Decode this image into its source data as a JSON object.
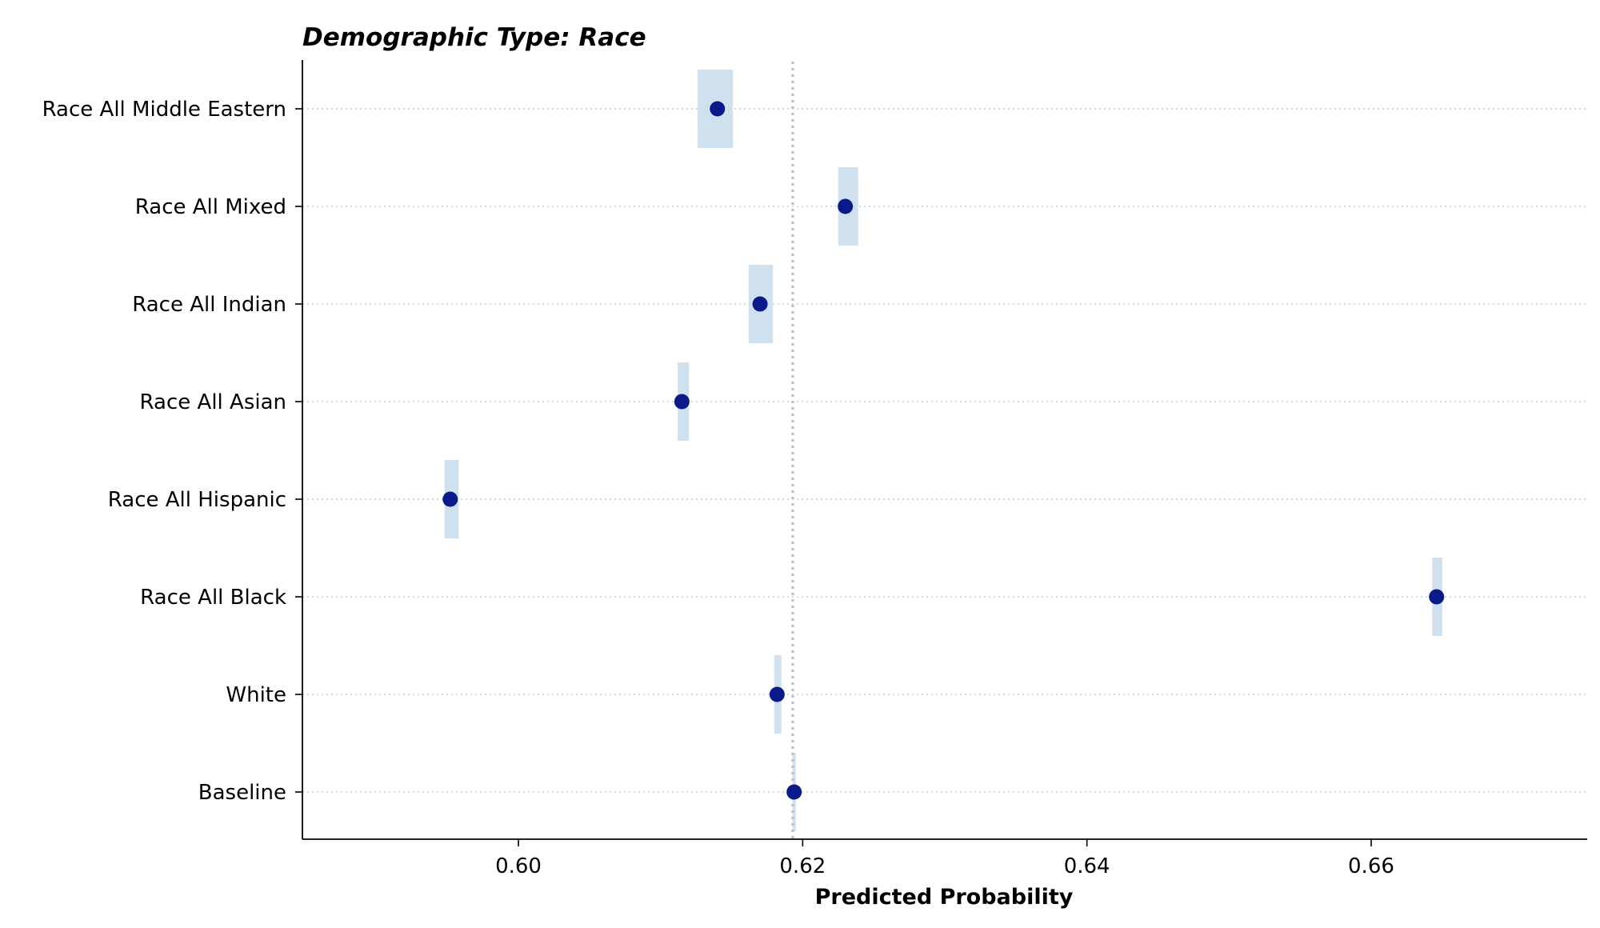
{
  "chart_data": {
    "type": "scatter",
    "title": "Demographic Type: Race",
    "xlabel": "Predicted Probability",
    "ylabel": "",
    "xlim": [
      0.5848,
      0.6752
    ],
    "xticks": [
      "0.60",
      "0.62",
      "0.64",
      "0.66"
    ],
    "xtick_values": [
      0.6,
      0.62,
      0.64,
      0.66
    ],
    "reference_line": 0.6193,
    "grid": "horizontal dotted",
    "colors": {
      "point": "#0a1a8a",
      "interval": "#cfe0ef",
      "reference": "#b8c0c8",
      "grid": "#a8c8d8"
    },
    "categories": [
      "Race All Middle Eastern",
      "Race All Mixed",
      "Race All Indian",
      "Race All Asian",
      "Race All Hispanic",
      "Race All Black",
      "White",
      "Baseline"
    ],
    "values": [
      0.614,
      0.623,
      0.617,
      0.6115,
      0.5952,
      0.6646,
      0.6182,
      0.6194
    ],
    "ci_low": [
      0.6126,
      0.6225,
      0.6162,
      0.6112,
      0.5948,
      0.6643,
      0.618,
      0.6193
    ],
    "ci_high": [
      0.6151,
      0.6239,
      0.6179,
      0.612,
      0.5958,
      0.665,
      0.6185,
      0.6195
    ]
  }
}
